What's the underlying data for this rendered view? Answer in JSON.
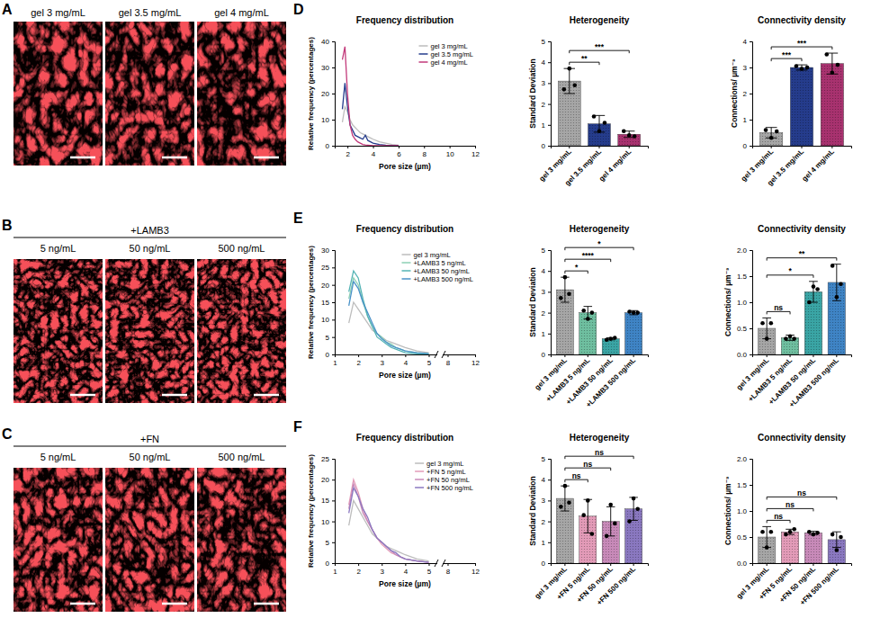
{
  "image_panels": [
    {
      "letter": "A",
      "labels": [
        "gel 3 mg/mL",
        "gel 3.5 mg/mL",
        "gel 4 mg/mL"
      ]
    },
    {
      "letter": "B",
      "heading": "+LAMB3",
      "labels": [
        "5 ng/mL",
        "50 ng/mL",
        "500 ng/mL"
      ]
    },
    {
      "letter": "C",
      "heading": "+FN",
      "labels": [
        "5 ng/mL",
        "50 ng/mL",
        "500 ng/mL"
      ]
    }
  ],
  "chart_panel_letters": [
    "D",
    "E",
    "F"
  ],
  "chart_data": [
    {
      "type": "line",
      "title": "Frequency distribution",
      "xlabel": "Pore size (µm)",
      "ylabel": "Relative frequency (percentages)",
      "x": [
        1.6,
        1.8,
        2.0,
        2.2,
        2.4,
        2.6,
        2.8,
        3.0,
        3.2,
        3.4,
        3.6,
        3.8,
        4.0,
        4.5,
        5.0,
        5.5,
        6.0
      ],
      "series": [
        {
          "name": "gel 3 mg/mL",
          "color": "#bdbdbd",
          "values": [
            9,
            15,
            13,
            10,
            8,
            7,
            6,
            5,
            4.5,
            4,
            3.5,
            3,
            2.5,
            1.5,
            1,
            0.5,
            0.2
          ]
        },
        {
          "name": "gel 3.5 mg/mL",
          "color": "#253c8c",
          "values": [
            14,
            24,
            15,
            8,
            6,
            4,
            3.5,
            3,
            2.5,
            4,
            2,
            1.5,
            1,
            0.5,
            0.2,
            0.1,
            0
          ]
        },
        {
          "name": "gel 4 mg/mL",
          "color": "#c2397a",
          "values": [
            33,
            38,
            20,
            8,
            4,
            2.5,
            1.5,
            1,
            0.5,
            0.3,
            0.2,
            0.1,
            0,
            0,
            0,
            0,
            0
          ]
        }
      ],
      "xlim": [
        1,
        12
      ],
      "xticks": [
        2,
        4,
        6,
        8,
        10,
        12
      ],
      "ylim": [
        0,
        40
      ],
      "yticks": [
        0,
        10,
        20,
        30,
        40
      ],
      "legend": "upper right"
    },
    {
      "type": "bar",
      "title": "Heterogeneity",
      "ylabel": "Standard Deviation",
      "categories": [
        "gel 3 mg/mL",
        "gel 3.5 mg/mL",
        "gel 4 mg/mL"
      ],
      "values": [
        3.1,
        1.05,
        0.55
      ],
      "errors": [
        0.6,
        0.4,
        0.15
      ],
      "points": [
        [
          2.7,
          3.7,
          2.9
        ],
        [
          1.4,
          0.7,
          1.1
        ],
        [
          0.7,
          0.5,
          0.45
        ]
      ],
      "colors": [
        "#a6a6a6",
        "#253c8c",
        "#a8326f"
      ],
      "ylim": [
        0,
        5
      ],
      "yticks": [
        0,
        1,
        2,
        3,
        4,
        5
      ],
      "comparisons": [
        {
          "groups": [
            "gel 3 mg/mL",
            "gel 3.5 mg/mL"
          ],
          "label": "**"
        },
        {
          "groups": [
            "gel 3 mg/mL",
            "gel 4 mg/mL"
          ],
          "label": "***"
        }
      ]
    },
    {
      "type": "bar",
      "title": "Connectivity density",
      "ylabel": "Connections/ µm⁻³",
      "categories": [
        "gel 3 mg/mL",
        "gel 3.5 mg/mL",
        "gel 4 mg/mL"
      ],
      "values": [
        0.5,
        3.0,
        3.15
      ],
      "errors": [
        0.2,
        0.1,
        0.4
      ],
      "points": [
        [
          0.6,
          0.3,
          0.55
        ],
        [
          3.05,
          2.95,
          3.0
        ],
        [
          3.5,
          2.8,
          3.1
        ]
      ],
      "colors": [
        "#a6a6a6",
        "#253c8c",
        "#a8326f"
      ],
      "ylim": [
        0,
        4
      ],
      "yticks": [
        0,
        1,
        2,
        3,
        4
      ],
      "comparisons": [
        {
          "groups": [
            "gel 3 mg/mL",
            "gel 3.5 mg/mL"
          ],
          "label": "***"
        },
        {
          "groups": [
            "gel 3 mg/mL",
            "gel 4 mg/mL"
          ],
          "label": "***"
        }
      ]
    },
    {
      "type": "line",
      "title": "Frequency distribution",
      "xlabel": "Pore size (µm)",
      "ylabel": "Relative frequency (percentages)",
      "x": [
        1.6,
        1.8,
        2.0,
        2.2,
        2.4,
        2.6,
        2.8,
        3.0,
        3.2,
        3.4,
        3.6,
        3.8,
        4.0,
        4.5,
        5.0
      ],
      "series": [
        {
          "name": "gel 3 mg/mL",
          "color": "#bdbdbd",
          "values": [
            9,
            15,
            13,
            11,
            9,
            7,
            6,
            5,
            4,
            3.5,
            3,
            2.5,
            2,
            1,
            0.5
          ]
        },
        {
          "name": "+LAMB3 5 ng/mL",
          "color": "#8dd0b5",
          "values": [
            16,
            22,
            20,
            15,
            11,
            8,
            6,
            5,
            3.5,
            3,
            2,
            1.5,
            1,
            0.5,
            0.2
          ]
        },
        {
          "name": "+LAMB3 50 ng/mL",
          "color": "#55b4b5",
          "values": [
            18,
            24,
            22,
            16,
            11,
            8,
            5,
            4,
            3,
            2,
            1.5,
            1,
            0.5,
            0.2,
            0.1
          ]
        },
        {
          "name": "+LAMB3 500 ng/mL",
          "color": "#4a92c8",
          "values": [
            14,
            21,
            19,
            15,
            12,
            9,
            6,
            4.5,
            3.5,
            2.5,
            2,
            1.5,
            1,
            0.5,
            0.2
          ]
        }
      ],
      "xlim": [
        1,
        12
      ],
      "xbreak": [
        5.3,
        7.5
      ],
      "xticks": [
        1,
        2,
        3,
        4,
        5,
        8,
        12
      ],
      "ylim": [
        0,
        30
      ],
      "yticks": [
        0,
        5,
        10,
        15,
        20,
        25,
        30
      ],
      "legend": "upper right"
    },
    {
      "type": "bar",
      "title": "Heterogeneity",
      "ylabel": "Standard Deviation",
      "categories": [
        "gel 3 mg/mL",
        "+LAMB3 5 ng/mL",
        "+LAMB3 50 ng/mL",
        "+LAMB3 500 ng/mL"
      ],
      "values": [
        3.1,
        2.0,
        0.75,
        2.0
      ],
      "errors": [
        0.6,
        0.3,
        0.05,
        0.1
      ],
      "points": [
        [
          2.7,
          3.7,
          2.9
        ],
        [
          2.1,
          1.7,
          2.0
        ],
        [
          0.7,
          0.75,
          0.8
        ],
        [
          2.05,
          2.0,
          2.0
        ]
      ],
      "colors": [
        "#a6a6a6",
        "#6fbfa0",
        "#3aa5a5",
        "#3f84c5"
      ],
      "ylim": [
        0,
        5
      ],
      "yticks": [
        0,
        1,
        2,
        3,
        4,
        5
      ],
      "comparisons": [
        {
          "groups": [
            "gel 3 mg/mL",
            "+LAMB3 5 ng/mL"
          ],
          "label": "*"
        },
        {
          "groups": [
            "gel 3 mg/mL",
            "+LAMB3 50 ng/mL"
          ],
          "label": "****"
        },
        {
          "groups": [
            "gel 3 mg/mL",
            "+LAMB3 500 ng/mL"
          ],
          "label": "*"
        }
      ]
    },
    {
      "type": "bar",
      "title": "Connectivity density",
      "ylabel": "Connections/ µm⁻³",
      "categories": [
        "gel 3 mg/mL",
        "+LAMB3 5 ng/mL",
        "+LAMB3 50 ng/mL",
        "+LAMB3 500 ng/mL"
      ],
      "values": [
        0.5,
        0.32,
        1.2,
        1.38
      ],
      "errors": [
        0.2,
        0.05,
        0.2,
        0.35
      ],
      "points": [
        [
          0.6,
          0.3,
          0.6
        ],
        [
          0.3,
          0.35,
          0.3
        ],
        [
          1.0,
          1.3,
          1.25
        ],
        [
          1.7,
          1.1,
          1.35
        ]
      ],
      "colors": [
        "#a6a6a6",
        "#6fbfa0",
        "#3aa5a5",
        "#3f84c5"
      ],
      "ylim": [
        0,
        2
      ],
      "yticks": [
        {
          "value": 0,
          "label": "0.0"
        },
        0.5,
        {
          "value": 1,
          "label": "1.0"
        },
        1.5,
        {
          "value": 2,
          "label": "2.0"
        }
      ],
      "comparisons": [
        {
          "groups": [
            "gel 3 mg/mL",
            "+LAMB3 5 ng/mL"
          ],
          "label": "ns"
        },
        {
          "groups": [
            "gel 3 mg/mL",
            "+LAMB3 50 ng/mL"
          ],
          "label": "*"
        },
        {
          "groups": [
            "gel 3 mg/mL",
            "+LAMB3 500 ng/mL"
          ],
          "label": "**"
        }
      ]
    },
    {
      "type": "line",
      "title": "Frequency distribution",
      "xlabel": "Pore size (µm)",
      "ylabel": "Relative frequency (percentages)",
      "x": [
        1.6,
        1.8,
        2.0,
        2.2,
        2.4,
        2.6,
        2.8,
        3.0,
        3.2,
        3.4,
        3.6,
        3.8,
        4.0,
        4.5,
        5.0
      ],
      "series": [
        {
          "name": "gel 3 mg/mL",
          "color": "#bdbdbd",
          "values": [
            9,
            15,
            13,
            11,
            9,
            7,
            6,
            5,
            4,
            3.5,
            3,
            2.5,
            2,
            1,
            0.5
          ]
        },
        {
          "name": "+FN 5 ng/mL",
          "color": "#e39bb8",
          "values": [
            14,
            20,
            17,
            13,
            10,
            8,
            6,
            4.5,
            3.5,
            2.5,
            2,
            1.5,
            1,
            0.5,
            0.2
          ]
        },
        {
          "name": "+FN 50 ng/mL",
          "color": "#c88ab9",
          "values": [
            13,
            19,
            16,
            12,
            10,
            8,
            6,
            5,
            4,
            3,
            2,
            1.5,
            1,
            0.5,
            0.2
          ]
        },
        {
          "name": "+FN 500 ng/mL",
          "color": "#8a78c0",
          "values": [
            12,
            18,
            16,
            13,
            11,
            8,
            6,
            5,
            4,
            3,
            2.5,
            1.5,
            1,
            0.5,
            0.2
          ]
        }
      ],
      "xlim": [
        1,
        12
      ],
      "xbreak": [
        5.3,
        7.5
      ],
      "xticks": [
        1,
        2,
        3,
        4,
        5,
        8,
        12
      ],
      "ylim": [
        0,
        25
      ],
      "yticks": [
        0,
        5,
        10,
        15,
        20,
        25
      ],
      "legend": "upper right"
    },
    {
      "type": "bar",
      "title": "Heterogeneity",
      "ylabel": "Standard Deviation",
      "categories": [
        "gel 3 mg/mL",
        "+FN 5 ng/mL",
        "+FN 50 ng/mL",
        "+FN 500 ng/mL"
      ],
      "values": [
        3.1,
        2.25,
        2.0,
        2.6
      ],
      "errors": [
        0.6,
        0.8,
        0.7,
        0.55
      ],
      "points": [
        [
          2.7,
          3.7,
          2.9
        ],
        [
          2.3,
          3.0,
          1.4
        ],
        [
          1.3,
          2.8,
          1.9
        ],
        [
          2.0,
          3.1,
          2.6
        ]
      ],
      "colors": [
        "#a6a6a6",
        "#e39bb8",
        "#c88ab9",
        "#8a78c0"
      ],
      "ylim": [
        0,
        5
      ],
      "yticks": [
        0,
        1,
        2,
        3,
        4,
        5
      ],
      "comparisons": [
        {
          "groups": [
            "gel 3 mg/mL",
            "+FN 5 ng/mL"
          ],
          "label": "ns"
        },
        {
          "groups": [
            "gel 3 mg/mL",
            "+FN 50 ng/mL"
          ],
          "label": "ns"
        },
        {
          "groups": [
            "gel 3 mg/mL",
            "+FN 500 ng/mL"
          ],
          "label": "ns"
        }
      ]
    },
    {
      "type": "bar",
      "title": "Connectivity density",
      "ylabel": "Connections/ µm⁻³",
      "categories": [
        "gel 3 mg/mL",
        "+FN 5 ng/mL",
        "+FN 50 ng/mL",
        "+FN 500 ng/mL"
      ],
      "values": [
        0.5,
        0.6,
        0.58,
        0.45
      ],
      "errors": [
        0.2,
        0.05,
        0.03,
        0.15
      ],
      "points": [
        [
          0.6,
          0.3,
          0.6
        ],
        [
          0.55,
          0.6,
          0.65
        ],
        [
          0.6,
          0.55,
          0.58
        ],
        [
          0.55,
          0.25,
          0.5
        ]
      ],
      "colors": [
        "#a6a6a6",
        "#e39bb8",
        "#c88ab9",
        "#8a78c0"
      ],
      "ylim": [
        0,
        2
      ],
      "yticks": [
        {
          "value": 0,
          "label": "0.0"
        },
        0.5,
        {
          "value": 1,
          "label": "1.0"
        },
        1.5,
        {
          "value": 2,
          "label": "2.0"
        }
      ],
      "comparisons": [
        {
          "groups": [
            "gel 3 mg/mL",
            "+FN 5 ng/mL"
          ],
          "label": "ns"
        },
        {
          "groups": [
            "gel 3 mg/mL",
            "+FN 50 ng/mL"
          ],
          "label": "ns"
        },
        {
          "groups": [
            "gel 3 mg/mL",
            "+FN 500 ng/mL"
          ],
          "label": "ns"
        }
      ]
    }
  ]
}
